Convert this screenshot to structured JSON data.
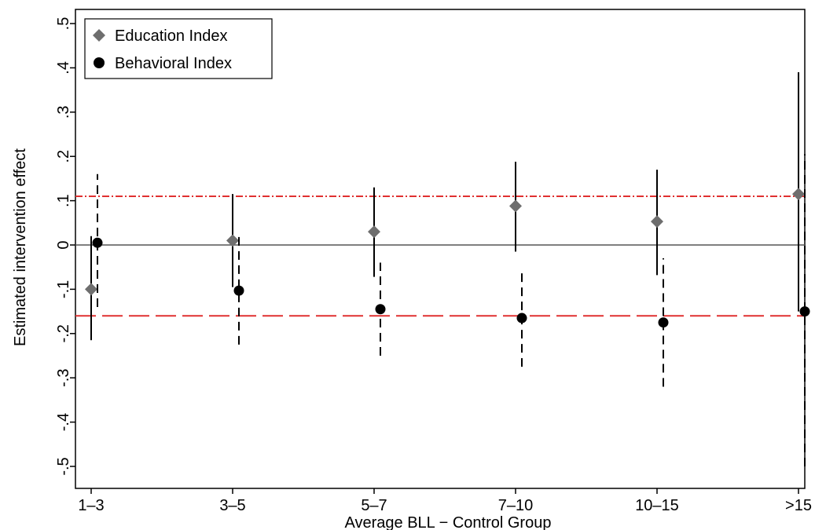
{
  "chart_data": {
    "type": "scatter",
    "xlabel": "Average BLL − Control Group",
    "ylabel": "Estimated intervention effect",
    "categories": [
      "1–3",
      "3–5",
      "5–7",
      "7–10",
      "10–15",
      ">15"
    ],
    "ylim": [
      -0.5,
      0.5
    ],
    "yticks": [
      {
        "value": -0.5,
        "label": "-.5"
      },
      {
        "value": -0.4,
        "label": "-.4"
      },
      {
        "value": -0.3,
        "label": "-.3"
      },
      {
        "value": -0.2,
        "label": "-.2"
      },
      {
        "value": -0.1,
        "label": "-.1"
      },
      {
        "value": 0,
        "label": "0"
      },
      {
        "value": 0.1,
        "label": ".1"
      },
      {
        "value": 0.2,
        "label": ".2"
      },
      {
        "value": 0.3,
        "label": ".3"
      },
      {
        "value": 0.4,
        "label": ".4"
      },
      {
        "value": 0.5,
        "label": ".5"
      }
    ],
    "grid": false,
    "legend_position": "top-left",
    "series": [
      {
        "name": "Education Index",
        "marker": "diamond",
        "color": "#6e6e6e",
        "errorbar_style": "solid",
        "values": [
          -0.1,
          0.01,
          0.03,
          0.088,
          0.053,
          0.115
        ],
        "ci_low": [
          -0.215,
          -0.095,
          -0.072,
          -0.015,
          -0.068,
          -0.15
        ],
        "ci_high": [
          0.02,
          0.115,
          0.13,
          0.188,
          0.17,
          0.39
        ]
      },
      {
        "name": "Behavioral Index",
        "marker": "circle",
        "color": "#000000",
        "errorbar_style": "dashed",
        "values": [
          0.005,
          -0.103,
          -0.145,
          -0.165,
          -0.175,
          -0.15
        ],
        "ci_low": [
          -0.14,
          -0.225,
          -0.25,
          -0.275,
          -0.32,
          -0.5
        ],
        "ci_high": [
          0.16,
          0.02,
          -0.04,
          -0.055,
          -0.03,
          0.205
        ]
      }
    ],
    "reference_lines": [
      {
        "y": 0,
        "style": "solid",
        "color": "#555555"
      },
      {
        "y": 0.11,
        "style": "dash-dot",
        "color": "#e03030"
      },
      {
        "y": -0.16,
        "style": "long-dash",
        "color": "#e03030"
      }
    ]
  }
}
